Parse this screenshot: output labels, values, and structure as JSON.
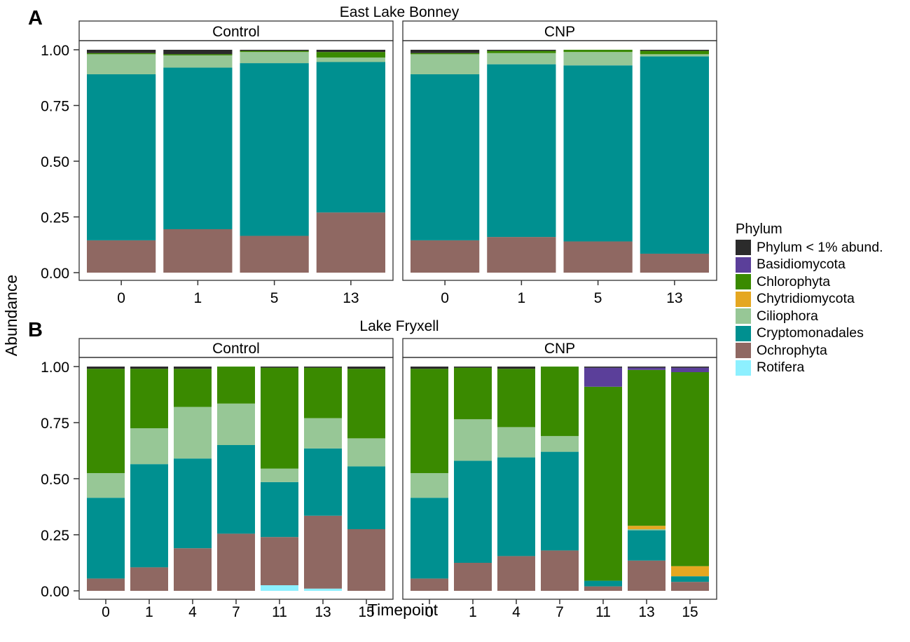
{
  "ylabel": "Abundance",
  "xlabel": "Timepoint",
  "legend": {
    "title": "Phylum",
    "items": [
      {
        "label": "Phylum < 1% abund.",
        "color": "#2b2b2b"
      },
      {
        "label": "Basidiomycota",
        "color": "#5b3f9a"
      },
      {
        "label": "Chlorophyta",
        "color": "#3a8a00"
      },
      {
        "label": "Chytridiomycota",
        "color": "#e5a721"
      },
      {
        "label": "Ciliophora",
        "color": "#97c796"
      },
      {
        "label": "Cryptomonadales",
        "color": "#009090"
      },
      {
        "label": "Ochrophyta",
        "color": "#8f6862"
      },
      {
        "label": "Rotifera",
        "color": "#8df0ff"
      }
    ]
  },
  "chart_data": [
    {
      "type": "bar",
      "stacked": true,
      "panel_letter": "A",
      "title": "East Lake Bonney",
      "ylim": [
        0,
        1
      ],
      "yticks": [
        "0.00",
        "0.25",
        "0.50",
        "0.75",
        "1.00"
      ],
      "facets": [
        {
          "label": "Control",
          "categories": [
            "0",
            "1",
            "5",
            "13"
          ],
          "series": [
            {
              "name": "Rotifera",
              "values": [
                0,
                0,
                0,
                0
              ]
            },
            {
              "name": "Ochrophyta",
              "values": [
                0.145,
                0.195,
                0.165,
                0.27
              ]
            },
            {
              "name": "Cryptomonadales",
              "values": [
                0.745,
                0.725,
                0.775,
                0.675
              ]
            },
            {
              "name": "Ciliophora",
              "values": [
                0.09,
                0.055,
                0.05,
                0.02
              ]
            },
            {
              "name": "Chytridiomycota",
              "values": [
                0,
                0,
                0,
                0
              ]
            },
            {
              "name": "Chlorophyta",
              "values": [
                0.005,
                0.005,
                0.005,
                0.025
              ]
            },
            {
              "name": "Basidiomycota",
              "values": [
                0,
                0,
                0,
                0
              ]
            },
            {
              "name": "Phylum < 1% abund.",
              "values": [
                0.015,
                0.02,
                0.005,
                0.01
              ]
            }
          ]
        },
        {
          "label": "CNP",
          "categories": [
            "0",
            "1",
            "5",
            "13"
          ],
          "series": [
            {
              "name": "Rotifera",
              "values": [
                0,
                0,
                0,
                0
              ]
            },
            {
              "name": "Ochrophyta",
              "values": [
                0.145,
                0.16,
                0.14,
                0.085
              ]
            },
            {
              "name": "Cryptomonadales",
              "values": [
                0.745,
                0.775,
                0.79,
                0.885
              ]
            },
            {
              "name": "Ciliophora",
              "values": [
                0.09,
                0.05,
                0.06,
                0.01
              ]
            },
            {
              "name": "Chytridiomycota",
              "values": [
                0,
                0,
                0,
                0
              ]
            },
            {
              "name": "Chlorophyta",
              "values": [
                0.005,
                0.01,
                0.01,
                0.015
              ]
            },
            {
              "name": "Basidiomycota",
              "values": [
                0,
                0,
                0,
                0
              ]
            },
            {
              "name": "Phylum < 1% abund.",
              "values": [
                0.015,
                0.005,
                0,
                0.005
              ]
            }
          ]
        }
      ]
    },
    {
      "type": "bar",
      "stacked": true,
      "panel_letter": "B",
      "title": "Lake Fryxell",
      "ylim": [
        0,
        1
      ],
      "yticks": [
        "0.00",
        "0.25",
        "0.50",
        "0.75",
        "1.00"
      ],
      "facets": [
        {
          "label": "Control",
          "categories": [
            "0",
            "1",
            "4",
            "7",
            "11",
            "13",
            "15"
          ],
          "series": [
            {
              "name": "Rotifera",
              "values": [
                0,
                0,
                0,
                0,
                0.025,
                0.01,
                0
              ]
            },
            {
              "name": "Ochrophyta",
              "values": [
                0.055,
                0.105,
                0.19,
                0.255,
                0.215,
                0.325,
                0.275
              ]
            },
            {
              "name": "Cryptomonadales",
              "values": [
                0.36,
                0.46,
                0.4,
                0.395,
                0.245,
                0.3,
                0.28
              ]
            },
            {
              "name": "Ciliophora",
              "values": [
                0.11,
                0.16,
                0.23,
                0.185,
                0.06,
                0.135,
                0.125
              ]
            },
            {
              "name": "Chytridiomycota",
              "values": [
                0,
                0,
                0,
                0,
                0,
                0,
                0
              ]
            },
            {
              "name": "Chlorophyta",
              "values": [
                0.465,
                0.265,
                0.17,
                0.165,
                0.45,
                0.225,
                0.31
              ]
            },
            {
              "name": "Basidiomycota",
              "values": [
                0,
                0,
                0,
                0,
                0,
                0,
                0
              ]
            },
            {
              "name": "Phylum < 1% abund.",
              "values": [
                0.01,
                0.01,
                0.01,
                0,
                0.005,
                0.005,
                0.01
              ]
            }
          ]
        },
        {
          "label": "CNP",
          "categories": [
            "0",
            "1",
            "4",
            "7",
            "11",
            "13",
            "15"
          ],
          "series": [
            {
              "name": "Rotifera",
              "values": [
                0,
                0,
                0,
                0,
                0,
                0,
                0
              ]
            },
            {
              "name": "Ochrophyta",
              "values": [
                0.055,
                0.125,
                0.155,
                0.18,
                0.02,
                0.135,
                0.04
              ]
            },
            {
              "name": "Cryptomonadales",
              "values": [
                0.36,
                0.455,
                0.44,
                0.44,
                0.025,
                0.135,
                0.025
              ]
            },
            {
              "name": "Ciliophora",
              "values": [
                0.11,
                0.185,
                0.135,
                0.07,
                0,
                0.005,
                0
              ]
            },
            {
              "name": "Chytridiomycota",
              "values": [
                0,
                0,
                0,
                0,
                0,
                0.015,
                0.045
              ]
            },
            {
              "name": "Chlorophyta",
              "values": [
                0.465,
                0.23,
                0.26,
                0.31,
                0.865,
                0.695,
                0.865
              ]
            },
            {
              "name": "Basidiomycota",
              "values": [
                0,
                0,
                0,
                0,
                0.085,
                0.01,
                0.02
              ]
            },
            {
              "name": "Phylum < 1% abund.",
              "values": [
                0.01,
                0.005,
                0.01,
                0,
                0.005,
                0.005,
                0.005
              ]
            }
          ]
        }
      ]
    }
  ]
}
